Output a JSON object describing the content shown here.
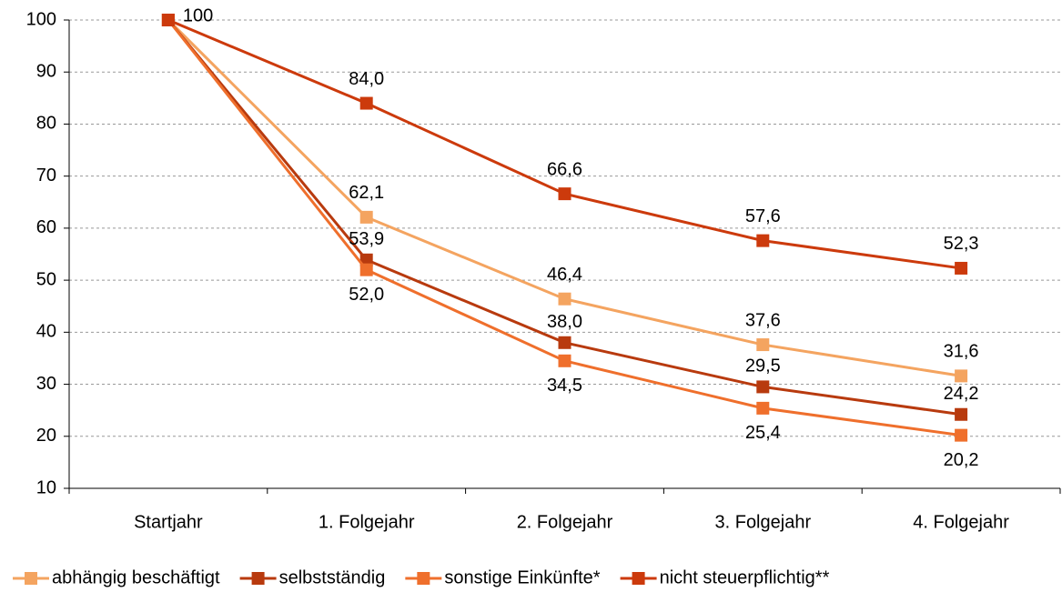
{
  "chart_data": {
    "type": "line",
    "categories": [
      "Startjahr",
      "1. Folgejahr",
      "2. Folgejahr",
      "3. Folgejahr",
      "4. Folgejahr"
    ],
    "series": [
      {
        "name": "abhängig beschäftigt",
        "color": "#f4a460",
        "values": [
          100,
          62.1,
          46.4,
          37.6,
          31.6
        ],
        "value_labels": [
          null,
          "62,1",
          "46,4",
          "37,6",
          "31,6"
        ]
      },
      {
        "name": "selbstständig",
        "color": "#b83a0e",
        "values": [
          100,
          53.9,
          38.0,
          29.5,
          24.2
        ],
        "value_labels": [
          null,
          "53,9",
          "38,0",
          "29,5",
          "24,2"
        ]
      },
      {
        "name": "sonstige Einkünfte*",
        "color": "#ef6f2c",
        "values": [
          100,
          52.0,
          34.5,
          25.4,
          20.2
        ],
        "value_labels": [
          null,
          "52,0",
          "34,5",
          "25,4",
          "20,2"
        ]
      },
      {
        "name": "nicht steuerpflichtig**",
        "color": "#cc3a0c",
        "values": [
          100,
          84.0,
          66.6,
          57.6,
          52.3
        ],
        "value_labels": [
          "100",
          "84,0",
          "66,6",
          "57,6",
          "52,3"
        ]
      }
    ],
    "ylim": [
      10,
      100
    ],
    "yticks": [
      10,
      20,
      30,
      40,
      50,
      60,
      70,
      80,
      90,
      100
    ],
    "grid": true
  }
}
